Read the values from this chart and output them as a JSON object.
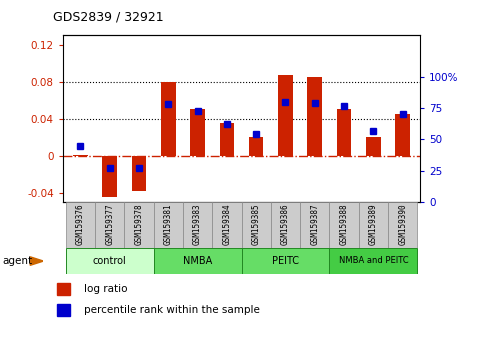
{
  "title": "GDS2839 / 32921",
  "samples": [
    "GSM159376",
    "GSM159377",
    "GSM159378",
    "GSM159381",
    "GSM159383",
    "GSM159384",
    "GSM159385",
    "GSM159386",
    "GSM159387",
    "GSM159388",
    "GSM159389",
    "GSM159390"
  ],
  "log_ratio": [
    0.001,
    -0.045,
    -0.038,
    0.08,
    0.05,
    0.035,
    0.02,
    0.087,
    0.085,
    0.05,
    0.02,
    0.045
  ],
  "percentile": [
    45,
    27,
    27,
    78,
    73,
    62,
    54,
    80,
    79,
    77,
    57,
    70
  ],
  "groups_data": [
    {
      "label": "control",
      "start": 0,
      "end": 2,
      "color": "#ccffcc"
    },
    {
      "label": "NMBA",
      "start": 3,
      "end": 5,
      "color": "#66dd66"
    },
    {
      "label": "PEITC",
      "start": 6,
      "end": 8,
      "color": "#66dd66"
    },
    {
      "label": "NMBA and PEITC",
      "start": 9,
      "end": 11,
      "color": "#44cc44"
    }
  ],
  "bar_color": "#cc2200",
  "dot_color": "#0000cc",
  "left_ylim": [
    -0.05,
    0.13
  ],
  "right_ylim": [
    0,
    133.33
  ],
  "left_yticks": [
    -0.04,
    0.0,
    0.04,
    0.08,
    0.12
  ],
  "left_yticklabels": [
    "-0.04",
    "0",
    "0.04",
    "0.08",
    "0.12"
  ],
  "right_yticks": [
    0,
    25,
    50,
    75,
    100
  ],
  "right_yticklabels": [
    "0",
    "25",
    "50",
    "75",
    "100%"
  ],
  "hlines": [
    0.04,
    0.08
  ],
  "zero_line": 0.0,
  "bar_width": 0.5,
  "label_bg": "#cccccc",
  "label_edge": "#888888"
}
